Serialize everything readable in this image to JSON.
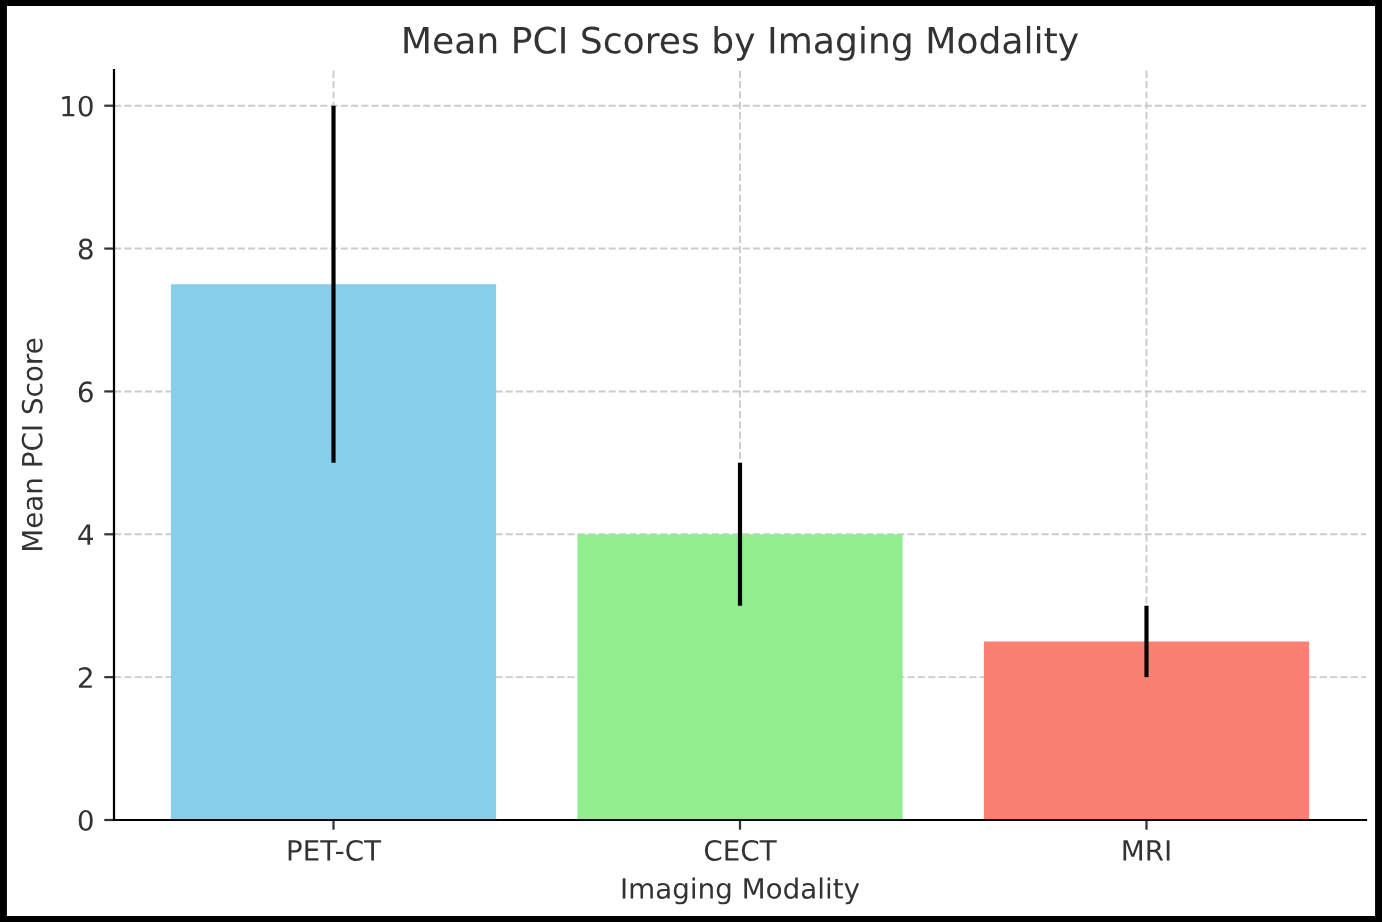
{
  "chart_data": {
    "type": "bar",
    "title": "Mean PCI Scores by Imaging Modality",
    "xlabel": "Imaging Modality",
    "ylabel": "Mean PCI Score",
    "categories": [
      "PET-CT",
      "CECT",
      "MRI"
    ],
    "values": [
      7.5,
      4,
      2.5
    ],
    "errors": [
      2.5,
      1,
      0.5
    ],
    "colors": [
      "#87ceeb",
      "#90ee90",
      "#fa8072"
    ],
    "ylim": [
      0,
      10.5
    ],
    "yticks": [
      0,
      2,
      4,
      6,
      8,
      10
    ],
    "grid": true
  }
}
